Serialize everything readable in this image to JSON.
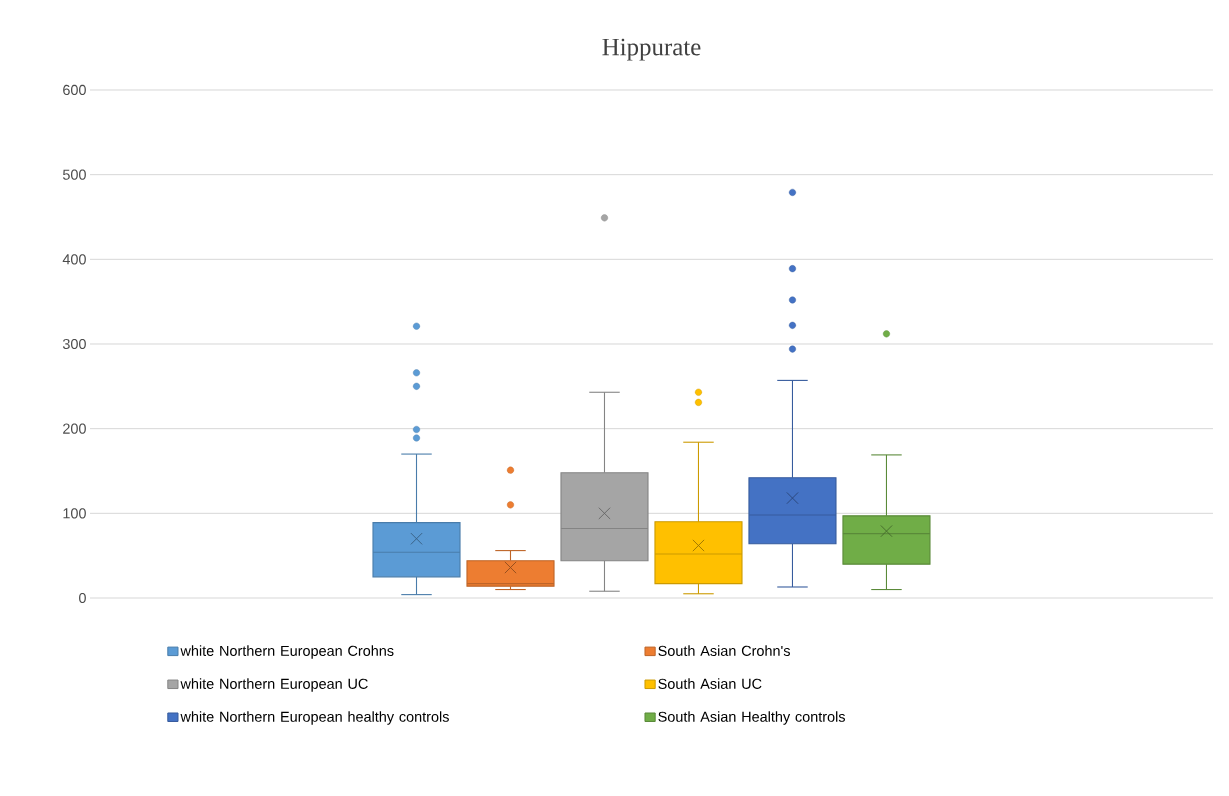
{
  "chart_data": {
    "type": "box",
    "title": "Hippurate",
    "categories": [
      null
    ],
    "ylim": [
      0,
      600
    ],
    "yticks": [
      0,
      100,
      200,
      300,
      400,
      500,
      600
    ],
    "grid": "y",
    "legend": "bottom",
    "marker": "circle",
    "series": [
      {
        "name": "white Northern European Crohns",
        "color": "#5b9bd5",
        "boxes": [
          {
            "low": 4,
            "q1": 25,
            "median": 54,
            "q3": 89,
            "high": 170,
            "mean": 70,
            "outliers": [
              321,
              266,
              250,
              199,
              189
            ]
          }
        ]
      },
      {
        "name": "South Asian Crohn's",
        "color": "#ed7d31",
        "boxes": [
          {
            "low": 10,
            "q1": 14,
            "median": 17,
            "q3": 44,
            "high": 56,
            "mean": 36,
            "outliers": [
              151,
              110
            ]
          }
        ]
      },
      {
        "name": "white Northern European UC",
        "color": "#a5a5a5",
        "boxes": [
          {
            "low": 8,
            "q1": 44,
            "median": 82,
            "q3": 148,
            "high": 243,
            "mean": 100,
            "outliers": [
              449
            ]
          }
        ]
      },
      {
        "name": "South Asian UC",
        "color": "#ffc000",
        "boxes": [
          {
            "low": 5,
            "q1": 17,
            "median": 52,
            "q3": 90,
            "high": 184,
            "mean": 62,
            "outliers": [
              243,
              231
            ]
          }
        ]
      },
      {
        "name": "white Northern European healthy controls",
        "color": "#4472c4",
        "boxes": [
          {
            "low": 13,
            "q1": 64,
            "median": 98,
            "q3": 142,
            "high": 257,
            "mean": 118,
            "outliers": [
              479,
              389,
              352,
              322,
              294
            ]
          }
        ]
      },
      {
        "name": "South Asian Healthy controls",
        "color": "#70ad47",
        "boxes": [
          {
            "low": 10,
            "q1": 40,
            "median": 76,
            "q3": 97,
            "high": 169,
            "mean": 79,
            "outliers": [
              312
            ]
          }
        ]
      }
    ]
  }
}
